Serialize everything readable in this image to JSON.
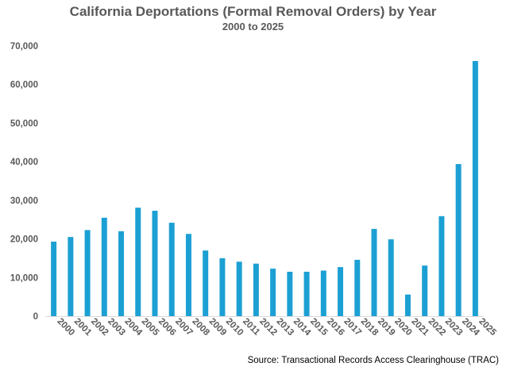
{
  "chart_data": {
    "type": "bar",
    "title": "California Deportations (Formal Removal Orders) by Year",
    "subtitle": "2000 to 2025",
    "categories": [
      "2000",
      "2001",
      "2002",
      "2003",
      "2004",
      "2005",
      "2006",
      "2007",
      "2008",
      "2009",
      "2010",
      "2011",
      "2012",
      "2013",
      "2014",
      "2015",
      "2016",
      "2017",
      "2018",
      "2019",
      "2020",
      "2021",
      "2022",
      "2023",
      "2024",
      "2025"
    ],
    "values": [
      19300,
      20500,
      22300,
      25500,
      22000,
      28100,
      27300,
      24200,
      21300,
      17000,
      15000,
      14100,
      13600,
      12300,
      11500,
      11500,
      11800,
      12700,
      14600,
      22600,
      19900,
      5600,
      13100,
      25900,
      39400,
      66100
    ],
    "ylim": [
      0,
      70000
    ],
    "yticks": [
      0,
      10000,
      20000,
      30000,
      40000,
      50000,
      60000,
      70000
    ],
    "ytick_labels": [
      "0",
      "10,000",
      "20,000",
      "30,000",
      "40,000",
      "50,000",
      "60,000",
      "70,000"
    ],
    "xlabel": "",
    "ylabel": "",
    "grid": false,
    "bar_color": "#1CA0D3",
    "source": "Source: Transactional Records Access Clearinghouse (TRAC)"
  }
}
